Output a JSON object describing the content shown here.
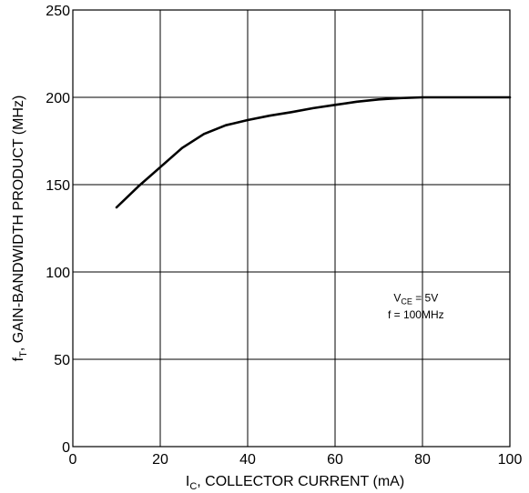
{
  "chart_data": {
    "type": "line",
    "x_ticks": [
      "0",
      "20",
      "40",
      "60",
      "80",
      "100"
    ],
    "y_ticks": [
      "0",
      "50",
      "100",
      "150",
      "200",
      "250"
    ],
    "xlim": [
      0,
      100
    ],
    "ylim": [
      0,
      250
    ],
    "grid": true,
    "xlabel": {
      "main": "I",
      "sub": "C",
      "rest": ", COLLECTOR CURRENT (mA)"
    },
    "ylabel": {
      "main": "f",
      "sub": "T",
      "rest": ", GAIN-BANDWIDTH PRODUCT (MHz)"
    },
    "annotation": {
      "line1": {
        "main": "V",
        "sub": "CE",
        "rest": " = 5V"
      },
      "line2": "f = 100MHz"
    },
    "series": [
      {
        "x": [
          10,
          15,
          20,
          25,
          30,
          35,
          40,
          45,
          50,
          55,
          60,
          65,
          70,
          75,
          80,
          85,
          90,
          95,
          100
        ],
        "y": [
          137,
          149,
          160,
          171,
          179,
          184,
          187,
          189.5,
          191.5,
          193.8,
          195.7,
          197.5,
          198.8,
          199.6,
          200,
          200,
          200,
          200,
          200
        ]
      }
    ]
  }
}
